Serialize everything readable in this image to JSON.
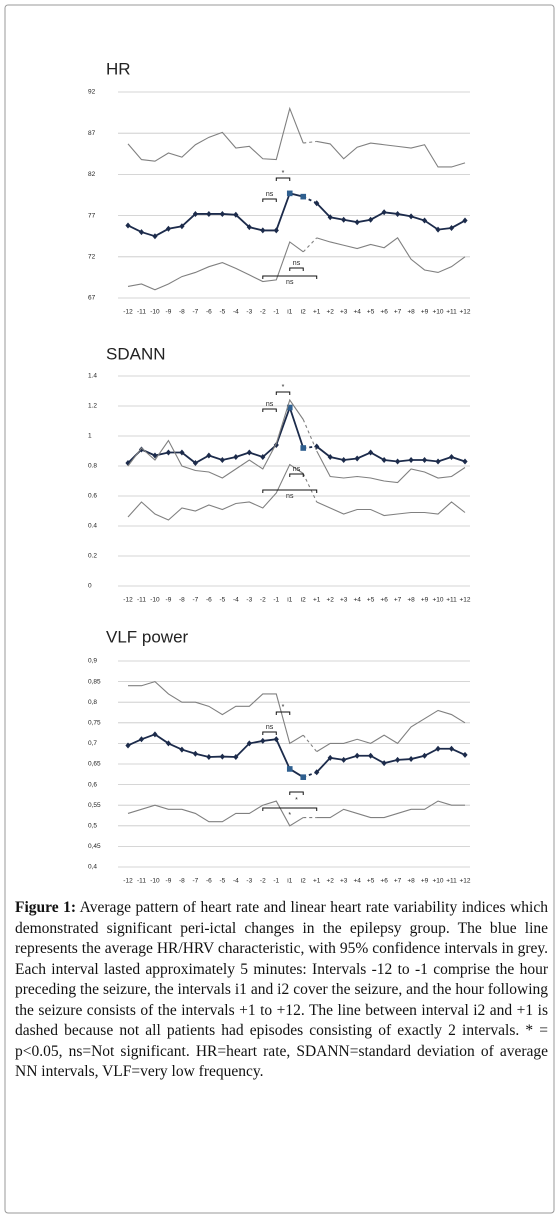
{
  "chart_data": [
    {
      "type": "line",
      "title": "HR",
      "categories": [
        "-12",
        "-11",
        "-10",
        "-9",
        "-8",
        "-7",
        "-6",
        "-5",
        "-4",
        "-3",
        "-2",
        "-1",
        "i1",
        "i2",
        "+1",
        "+2",
        "+3",
        "+4",
        "+5",
        "+6",
        "+7",
        "+8",
        "+9",
        "+10",
        "+11",
        "+12"
      ],
      "series": [
        {
          "color": "#1c2b4b",
          "markers": true,
          "highlight": [
            "i1",
            "i2"
          ],
          "highlight_color": "#2f5f8f",
          "values": [
            75.8,
            75,
            74.5,
            75.4,
            75.7,
            77.2,
            77.2,
            77.2,
            77.1,
            75.6,
            75.2,
            75.2,
            79.7,
            79.3,
            78.5,
            76.8,
            76.5,
            76.2,
            76.5,
            77.4,
            77.2,
            76.9,
            76.4,
            75.3,
            75.5,
            76.4
          ]
        },
        {
          "color": "#808080",
          "markers": false,
          "values": [
            85.7,
            83.8,
            83.6,
            84.6,
            84.1,
            85.6,
            86.5,
            87.1,
            85.2,
            85.4,
            83.9,
            83.8,
            90,
            85.8,
            86,
            85.7,
            83.9,
            85.3,
            85.8,
            85.6,
            85.4,
            85.2,
            85.6,
            82.9,
            82.9,
            83.4
          ]
        },
        {
          "color": "#808080",
          "markers": false,
          "values": [
            68.4,
            68.7,
            68,
            68.7,
            69.6,
            70.1,
            70.8,
            71.3,
            70.6,
            69.8,
            69,
            69.2,
            73.8,
            72.6,
            74.3,
            73.8,
            73.4,
            73,
            73.5,
            73.1,
            74.3,
            71.7,
            70.4,
            70.1,
            70.8,
            72
          ]
        }
      ],
      "dashed_from": "i2",
      "ylim": [
        67,
        92
      ],
      "yticks": [
        92,
        87,
        82,
        77,
        72,
        67
      ],
      "grid": true,
      "annotations": [
        {
          "text": "*",
          "from": "-1",
          "to": "i1"
        },
        {
          "text": "ns",
          "from": "-2",
          "to": "-1"
        },
        {
          "text": "ns",
          "from": "i1",
          "to": "i2"
        },
        {
          "text": "ns",
          "from": "-2",
          "to": "+1"
        }
      ]
    },
    {
      "type": "line",
      "title": "SDANN",
      "categories": [
        "-12",
        "-11",
        "-10",
        "-9",
        "-8",
        "-7",
        "-6",
        "-5",
        "-4",
        "-3",
        "-2",
        "-1",
        "i1",
        "i2",
        "+1",
        "+2",
        "+3",
        "+4",
        "+5",
        "+6",
        "+7",
        "+8",
        "+9",
        "+10",
        "+11",
        "+12"
      ],
      "series": [
        {
          "color": "#1c2b4b",
          "markers": true,
          "highlight": [
            "i1",
            "i2"
          ],
          "highlight_color": "#2f5f8f",
          "values": [
            0.82,
            0.91,
            0.87,
            0.89,
            0.89,
            0.82,
            0.87,
            0.84,
            0.86,
            0.89,
            0.86,
            0.94,
            1.19,
            0.92,
            0.93,
            0.86,
            0.84,
            0.85,
            0.89,
            0.84,
            0.83,
            0.84,
            0.84,
            0.83,
            0.86,
            0.83
          ]
        },
        {
          "color": "#808080",
          "markers": false,
          "values": [
            0.8,
            0.92,
            0.84,
            0.97,
            0.8,
            0.77,
            0.76,
            0.72,
            0.78,
            0.84,
            0.78,
            0.95,
            1.24,
            1.11,
            0.9,
            0.73,
            0.72,
            0.73,
            0.72,
            0.7,
            0.69,
            0.78,
            0.76,
            0.72,
            0.73,
            0.79
          ]
        },
        {
          "color": "#808080",
          "markers": false,
          "values": [
            0.46,
            0.56,
            0.48,
            0.44,
            0.52,
            0.5,
            0.54,
            0.51,
            0.55,
            0.56,
            0.52,
            0.62,
            0.81,
            0.75,
            0.56,
            0.52,
            0.48,
            0.51,
            0.51,
            0.47,
            0.48,
            0.49,
            0.49,
            0.48,
            0.56,
            0.49
          ]
        }
      ],
      "dashed_from": "i2",
      "ylim": [
        0,
        1.4
      ],
      "yticks": [
        1.4,
        1.2,
        1,
        0.8,
        0.6,
        0.4,
        0.2,
        0
      ],
      "grid": true,
      "annotations": [
        {
          "text": "*",
          "from": "-1",
          "to": "i1"
        },
        {
          "text": "ns",
          "from": "-2",
          "to": "-1"
        },
        {
          "text": "ns",
          "from": "i1",
          "to": "i2"
        },
        {
          "text": "ns",
          "from": "-2",
          "to": "+1"
        }
      ]
    },
    {
      "type": "line",
      "title": "VLF power",
      "categories": [
        "-12",
        "-11",
        "-10",
        "-9",
        "-8",
        "-7",
        "-6",
        "-5",
        "-4",
        "-3",
        "-2",
        "-1",
        "i1",
        "i2",
        "+1",
        "+2",
        "+3",
        "+4",
        "+5",
        "+6",
        "+7",
        "+8",
        "+9",
        "+10",
        "+11",
        "+12"
      ],
      "series": [
        {
          "color": "#1c2b4b",
          "markers": true,
          "highlight": [
            "i1",
            "i2"
          ],
          "highlight_color": "#2f5f8f",
          "values": [
            0.695,
            0.71,
            0.722,
            0.7,
            0.685,
            0.675,
            0.667,
            0.668,
            0.667,
            0.7,
            0.706,
            0.71,
            0.638,
            0.618,
            0.63,
            0.665,
            0.66,
            0.67,
            0.67,
            0.652,
            0.66,
            0.662,
            0.67,
            0.687,
            0.687,
            0.672
          ]
        },
        {
          "color": "#808080",
          "markers": false,
          "values": [
            0.84,
            0.84,
            0.85,
            0.82,
            0.8,
            0.8,
            0.79,
            0.77,
            0.79,
            0.79,
            0.82,
            0.82,
            0.7,
            0.72,
            0.68,
            0.7,
            0.7,
            0.71,
            0.7,
            0.72,
            0.7,
            0.74,
            0.76,
            0.78,
            0.77,
            0.75
          ]
        },
        {
          "color": "#808080",
          "markers": false,
          "values": [
            0.53,
            0.54,
            0.55,
            0.54,
            0.54,
            0.53,
            0.51,
            0.51,
            0.53,
            0.53,
            0.55,
            0.56,
            0.5,
            0.52,
            0.52,
            0.52,
            0.54,
            0.53,
            0.52,
            0.52,
            0.53,
            0.54,
            0.54,
            0.56,
            0.55,
            0.55
          ]
        }
      ],
      "dashed_from": "i2",
      "ylim": [
        0.4,
        0.9
      ],
      "yticks": [
        {
          "value": 0.9,
          "label": "0,9"
        },
        {
          "value": 0.85,
          "label": "0,85"
        },
        {
          "value": 0.8,
          "label": "0,8"
        },
        {
          "value": 0.75,
          "label": "0,75"
        },
        {
          "value": 0.7,
          "label": "0,7"
        },
        {
          "value": 0.65,
          "label": "0,65"
        },
        {
          "value": 0.6,
          "label": "0,6"
        },
        {
          "value": 0.55,
          "label": "0,55"
        },
        {
          "value": 0.5,
          "label": "0,5"
        },
        {
          "value": 0.45,
          "label": "0,45"
        },
        {
          "value": 0.4,
          "label": "0,4"
        }
      ],
      "grid": true,
      "annotations": [
        {
          "text": "*",
          "from": "-1",
          "to": "i1"
        },
        {
          "text": "ns",
          "from": "-2",
          "to": "-1"
        },
        {
          "text": "*",
          "from": "i1",
          "to": "i2"
        },
        {
          "text": "*",
          "from": "-2",
          "to": "+1"
        }
      ]
    }
  ],
  "caption": {
    "label": "Figure 1:",
    "text": "Average pattern of heart rate and linear heart rate variability indices which demonstrated significant peri-ictal changes in the epilepsy group. The blue line represents the average HR/HRV characteristic, with 95% confidence intervals in grey. Each interval lasted approximately 5 minutes: Intervals -12 to -1 comprise the hour preceding the seizure, the intervals i1 and i2 cover the seizure, and the hour following the seizure consists of the intervals +1 to +12. The line between interval i2 and +1 is dashed because not all patients had episodes consisting of exactly 2 intervals. * = p<0.05, ns=Not significant. HR=heart rate, SDANN=standard deviation of average NN intervals, VLF=very low frequency."
  }
}
